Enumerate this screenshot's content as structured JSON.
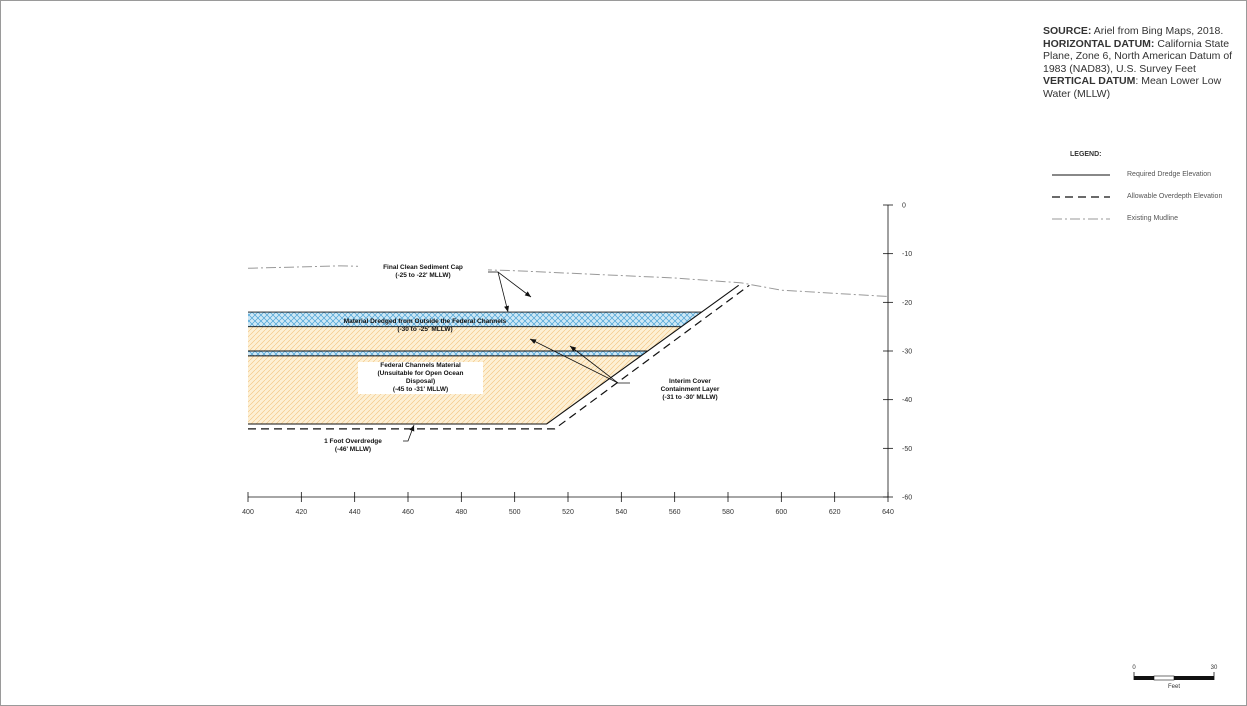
{
  "notes": {
    "source_key": "SOURCE:",
    "source_val": " Ariel from Bing Maps, 2018.",
    "hdatum_key": "HORIZONTAL DATUM:",
    "hdatum_val": " California State Plane, Zone 6, North American Datum of 1983 (NAD83), U.S. Survey Feet",
    "vdatum_key": "VERTICAL DATUM",
    "vdatum_val": ": Mean Lower Low Water (MLLW)"
  },
  "legend": {
    "title": "LEGEND:",
    "items": [
      {
        "label": "Required Dredge Elevation",
        "style": "solid"
      },
      {
        "label": "Allowable Overdepth Elevation",
        "style": "dashed"
      },
      {
        "label": "Existing Mudline",
        "style": "dashdot"
      }
    ]
  },
  "axes": {
    "x_ticks": [
      "400",
      "420",
      "440",
      "460",
      "480",
      "500",
      "520",
      "540",
      "560",
      "580",
      "600",
      "620",
      "640"
    ],
    "y_ticks": [
      "0",
      "-10",
      "-20",
      "-30",
      "-40",
      "-50",
      "-60"
    ],
    "x_range": [
      400,
      640
    ],
    "y_range": [
      0,
      -60
    ]
  },
  "section": {
    "mudline": [
      [
        400,
        -13
      ],
      [
        435,
        -12.5
      ],
      [
        500,
        -13.5
      ],
      [
        560,
        -15
      ],
      [
        585,
        -16
      ],
      [
        600,
        -17.5
      ],
      [
        640,
        -18.8
      ]
    ],
    "required_dredge": [
      [
        400,
        -45
      ],
      [
        512,
        -45
      ],
      [
        584,
        -16.5
      ]
    ],
    "overdepth": [
      [
        400,
        -46
      ],
      [
        515,
        -46
      ],
      [
        588,
        -16.5
      ]
    ],
    "cap_elevations": [
      -22,
      -25
    ],
    "containment_elevations": [
      -30,
      -31
    ],
    "colors": {
      "cap_fill": "#cfe8f5",
      "cap_hatch": "#4aa3d6",
      "material_fill": "#fdf0d5",
      "material_hatch": "#f2c27a",
      "mudline": "#999999",
      "line": "#111111"
    }
  },
  "annotations": {
    "cap": [
      "Final Clean Sediment Cap",
      "(-25 to -22' MLLW)"
    ],
    "outside": [
      "Material  Dredged from Outside the Federal Channels",
      "(-30 to -25' MLLW)"
    ],
    "federal": [
      "Federal Channels Material",
      "(Unsuitable for Open Ocean",
      "Disposal)",
      "(-45 to -31' MLLW)"
    ],
    "interim": [
      "Interim Cover",
      "Containment Layer",
      "(-31 to -30' MLLW)"
    ],
    "overdredge": [
      "1 Foot Overdredge",
      "(-46' MLLW)"
    ]
  },
  "scale_bar": {
    "labels": [
      "0",
      "30"
    ],
    "unit": "Feet"
  }
}
